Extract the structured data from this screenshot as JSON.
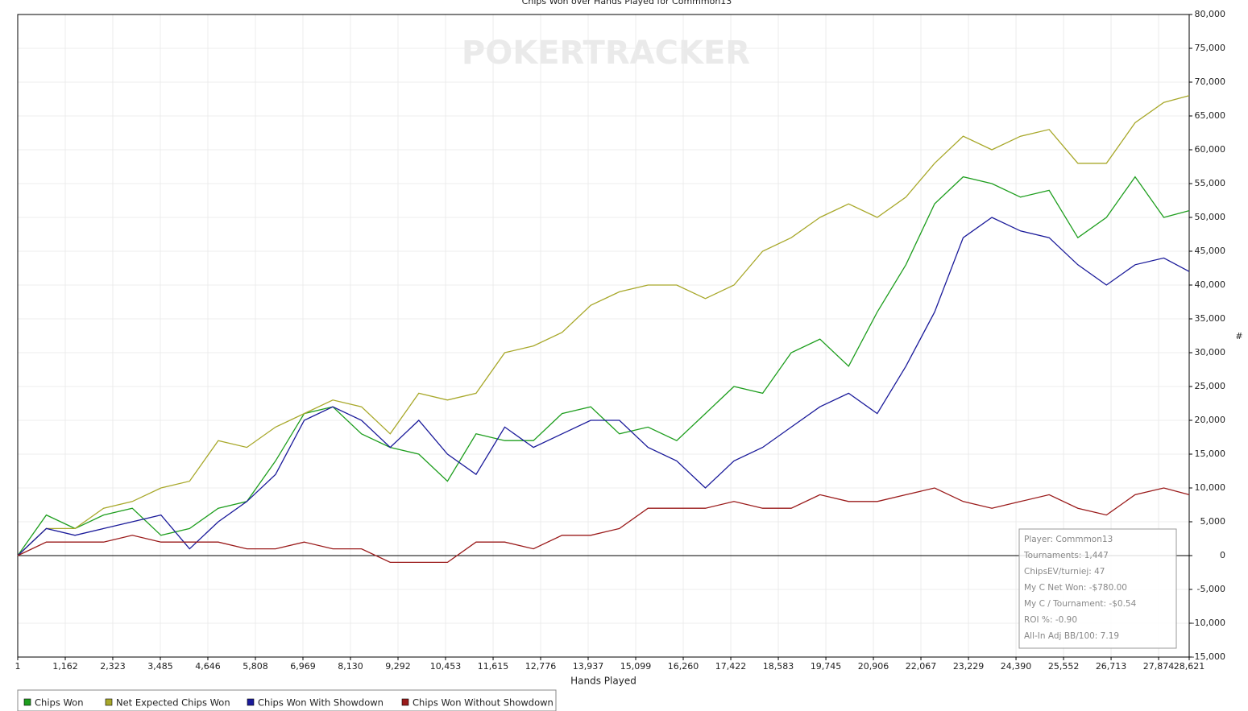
{
  "chart_data": {
    "type": "line",
    "title": "Chips Won over Hands Played for Commmon13",
    "watermark": "POKERTRACKER",
    "x_label": "Hands Played",
    "y_label": "#",
    "x": [
      1,
      700,
      1400,
      2100,
      2800,
      3500,
      4200,
      4900,
      5600,
      6300,
      7000,
      7700,
      8400,
      9100,
      9800,
      10500,
      11200,
      11900,
      12600,
      13300,
      14000,
      14700,
      15400,
      16100,
      16800,
      17500,
      18200,
      18900,
      19600,
      20300,
      21000,
      21700,
      22400,
      23100,
      23800,
      24500,
      25200,
      25900,
      26600,
      27300,
      28000,
      28621
    ],
    "series": [
      {
        "name": "Chips Won",
        "color": "#1e9e1e",
        "values": [
          0,
          6000,
          4000,
          6000,
          7000,
          3000,
          4000,
          7000,
          8000,
          14000,
          21000,
          22000,
          18000,
          16000,
          15000,
          11000,
          18000,
          17000,
          17000,
          21000,
          22000,
          18000,
          19000,
          17000,
          21000,
          25000,
          24000,
          30000,
          32000,
          28000,
          36000,
          43000,
          52000,
          56000,
          55000,
          53000,
          54000,
          47000,
          50000,
          56000,
          50000,
          51000
        ]
      },
      {
        "name": "Net Expected Chips Won",
        "color": "#a8a82a",
        "values": [
          0,
          4000,
          4000,
          7000,
          8000,
          10000,
          11000,
          17000,
          16000,
          19000,
          21000,
          23000,
          22000,
          18000,
          24000,
          23000,
          24000,
          30000,
          31000,
          33000,
          37000,
          39000,
          40000,
          40000,
          38000,
          40000,
          45000,
          47000,
          50000,
          52000,
          50000,
          53000,
          58000,
          62000,
          60000,
          62000,
          63000,
          58000,
          58000,
          64000,
          67000,
          68000
        ]
      },
      {
        "name": "Chips Won With Showdown",
        "color": "#1a1a9a",
        "values": [
          0,
          4000,
          3000,
          4000,
          5000,
          6000,
          1000,
          5000,
          8000,
          12000,
          20000,
          22000,
          20000,
          16000,
          20000,
          15000,
          12000,
          19000,
          16000,
          18000,
          20000,
          20000,
          16000,
          14000,
          10000,
          14000,
          16000,
          19000,
          22000,
          24000,
          21000,
          28000,
          36000,
          47000,
          50000,
          48000,
          47000,
          43000,
          40000,
          43000,
          44000,
          42000
        ]
      },
      {
        "name": "Chips Won Without Showdown",
        "color": "#9a1a1a",
        "values": [
          0,
          2000,
          2000,
          2000,
          3000,
          2000,
          2000,
          2000,
          1000,
          1000,
          2000,
          1000,
          1000,
          -1000,
          -1000,
          -1000,
          2000,
          2000,
          1000,
          3000,
          3000,
          4000,
          7000,
          7000,
          7000,
          8000,
          7000,
          7000,
          9000,
          8000,
          8000,
          9000,
          10000,
          8000,
          7000,
          8000,
          9000,
          7000,
          6000,
          9000,
          10000,
          9000
        ]
      }
    ],
    "xlim": [
      1,
      28621
    ],
    "ylim": [
      -15000,
      80000
    ],
    "xticks": [
      1,
      {
        "value": 1162,
        "label": "1,162"
      },
      {
        "value": 2323,
        "label": "2,323"
      },
      {
        "value": 3485,
        "label": "3,485"
      },
      {
        "value": 4646,
        "label": "4,646"
      },
      {
        "value": 5808,
        "label": "5,808"
      },
      {
        "value": 6969,
        "label": "6,969"
      },
      {
        "value": 8130,
        "label": "8,130"
      },
      {
        "value": 9292,
        "label": "9,292"
      },
      {
        "value": 10453,
        "label": "10,453"
      },
      {
        "value": 11615,
        "label": "11,615"
      },
      {
        "value": 12776,
        "label": "12,776"
      },
      {
        "value": 13937,
        "label": "13,937"
      },
      {
        "value": 15099,
        "label": "15,099"
      },
      {
        "value": 16260,
        "label": "16,260"
      },
      {
        "value": 17422,
        "label": "17,422"
      },
      {
        "value": 18583,
        "label": "18,583"
      },
      {
        "value": 19745,
        "label": "19,745"
      },
      {
        "value": 20906,
        "label": "20,906"
      },
      {
        "value": 22067,
        "label": "22,067"
      },
      {
        "value": 23229,
        "label": "23,229"
      },
      {
        "value": 24390,
        "label": "24,390"
      },
      {
        "value": 25552,
        "label": "25,552"
      },
      {
        "value": 26713,
        "label": "26,713"
      },
      {
        "value": 27874,
        "label": "27,874"
      },
      {
        "value": 28621,
        "label": "28,621"
      }
    ],
    "yticks": [
      {
        "value": -15000,
        "label": "-15,000"
      },
      {
        "value": -10000,
        "label": "-10,000"
      },
      {
        "value": -5000,
        "label": "-5,000"
      },
      0,
      {
        "value": 5000,
        "label": "5,000"
      },
      {
        "value": 10000,
        "label": "10,000"
      },
      {
        "value": 15000,
        "label": "15,000"
      },
      {
        "value": 20000,
        "label": "20,000"
      },
      {
        "value": 25000,
        "label": "25,000"
      },
      {
        "value": 30000,
        "label": "30,000"
      },
      {
        "value": 35000,
        "label": "35,000"
      },
      {
        "value": 40000,
        "label": "40,000"
      },
      {
        "value": 45000,
        "label": "45,000"
      },
      {
        "value": 50000,
        "label": "50,000"
      },
      {
        "value": 55000,
        "label": "55,000"
      },
      {
        "value": 60000,
        "label": "60,000"
      },
      {
        "value": 65000,
        "label": "65,000"
      },
      {
        "value": 70000,
        "label": "70,000"
      },
      {
        "value": 75000,
        "label": "75,000"
      },
      {
        "value": 80000,
        "label": "80,000"
      }
    ],
    "grid": true,
    "legend": "bottom-left",
    "annotations": [
      "Player: Commmon13",
      "Tournaments: 1,447",
      "ChipsEV/turniej: 47",
      "My C Net Won: -$780.00",
      "My C / Tournament: -$0.54",
      "ROI %: -0.90",
      "All-In Adj BB/100: 7.19"
    ]
  }
}
